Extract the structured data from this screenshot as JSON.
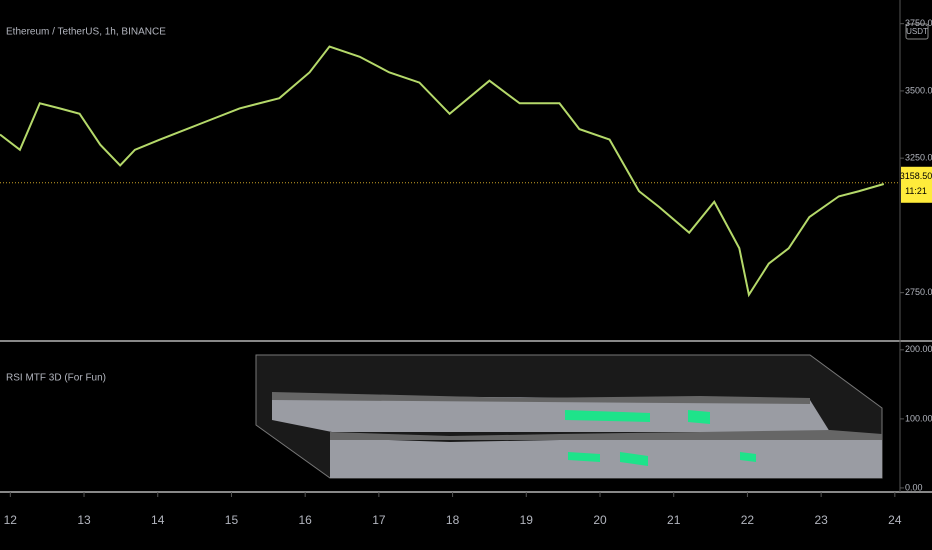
{
  "chart_data": [
    {
      "type": "line",
      "title": "Ethereum / TetherUS, 1h, BINANCE",
      "currency": "USDT",
      "x": [
        11.86,
        12.13,
        12.4,
        12.67,
        12.94,
        13.22,
        13.49,
        13.69,
        14.03,
        14.57,
        15.11,
        15.65,
        16.06,
        16.33,
        16.74,
        17.14,
        17.55,
        17.96,
        18.5,
        18.91,
        19.45,
        19.72,
        20.13,
        20.53,
        20.8,
        21.21,
        21.55,
        21.89,
        22.02,
        22.29,
        22.56,
        22.84,
        23.24,
        23.51,
        23.85
      ],
      "values": [
        3338,
        3281,
        3454,
        3435,
        3415,
        3300,
        3223,
        3281,
        3319,
        3377,
        3435,
        3473,
        3569,
        3665,
        3627,
        3569,
        3531,
        3415,
        3538,
        3454,
        3454,
        3358,
        3319,
        3127,
        3069,
        2973,
        3088,
        2915,
        2742,
        2858,
        2915,
        3031,
        3108,
        3127,
        3154
      ],
      "color": "#b5d96a",
      "last_price": 3158.5,
      "last_price_label": "3158.50",
      "countdown": "11:21",
      "xlim": [
        11.86,
        24.07
      ],
      "xticks": [
        12,
        13,
        14,
        15,
        16,
        17,
        18,
        19,
        20,
        21,
        22,
        23,
        24
      ],
      "ylim": [
        2574,
        3838
      ],
      "yticks": [
        {
          "value": 2750,
          "label": "2750.00"
        },
        {
          "value": 3250,
          "label": "3250.00"
        },
        {
          "value": 3500,
          "label": "3500.00"
        },
        {
          "value": 3750,
          "label": "3750.00"
        }
      ]
    },
    {
      "type": "indicator",
      "title": "RSI MTF 3D (For Fun)",
      "ylim": [
        -3,
        207
      ],
      "yticks": [
        {
          "value": 0,
          "label": "0.00"
        },
        {
          "value": 100,
          "label": "100.00"
        },
        {
          "value": 200,
          "label": "200.00"
        }
      ]
    }
  ]
}
